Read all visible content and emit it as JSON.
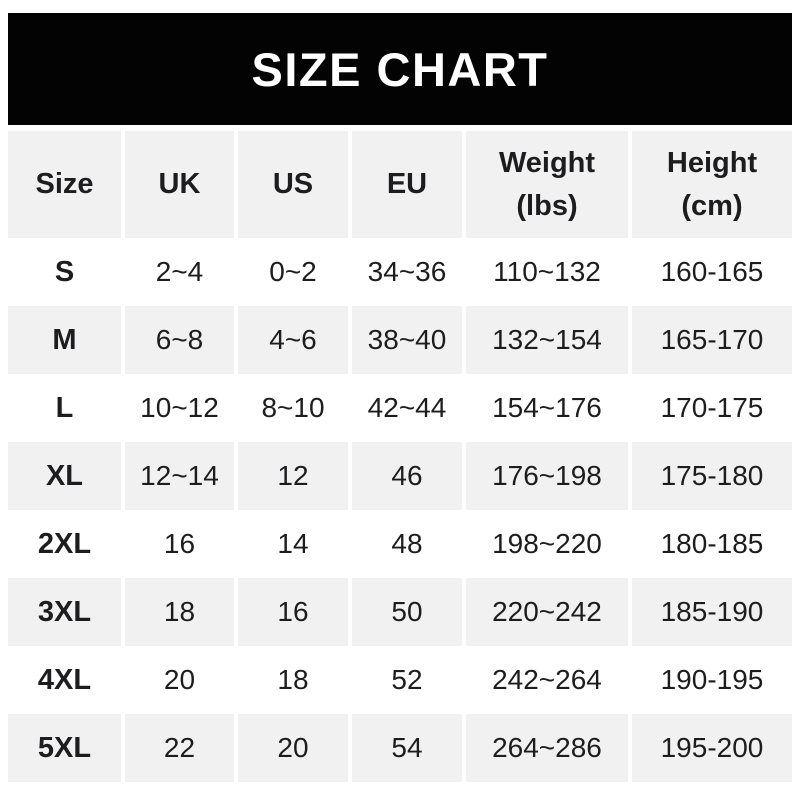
{
  "title": "SIZE CHART",
  "colors": {
    "banner_bg": "#030303",
    "banner_text": "#ffffff",
    "shaded_row_bg": "#f1f1f1",
    "row_bg": "#ffffff",
    "text": "#1d1d1f"
  },
  "chart_data": {
    "type": "table",
    "title": "SIZE CHART",
    "columns": [
      "Size",
      "UK",
      "US",
      "EU",
      "Weight\n(lbs)",
      "Height\n(cm)"
    ],
    "rows": [
      [
        "S",
        "2~4",
        "0~2",
        "34~36",
        "110~132",
        "160-165"
      ],
      [
        "M",
        "6~8",
        "4~6",
        "38~40",
        "132~154",
        "165-170"
      ],
      [
        "L",
        "10~12",
        "8~10",
        "42~44",
        "154~176",
        "170-175"
      ],
      [
        "XL",
        "12~14",
        "12",
        "46",
        "176~198",
        "175-180"
      ],
      [
        "2XL",
        "16",
        "14",
        "48",
        "198~220",
        "180-185"
      ],
      [
        "3XL",
        "18",
        "16",
        "50",
        "220~242",
        "185-190"
      ],
      [
        "4XL",
        "20",
        "18",
        "52",
        "242~264",
        "190-195"
      ],
      [
        "5XL",
        "22",
        "20",
        "54",
        "264~286",
        "195-200"
      ]
    ],
    "layout": {
      "header_shaded": true,
      "alternating_rows": "white/gray starting white",
      "weight_separator": "~",
      "height_separator": "-"
    }
  }
}
